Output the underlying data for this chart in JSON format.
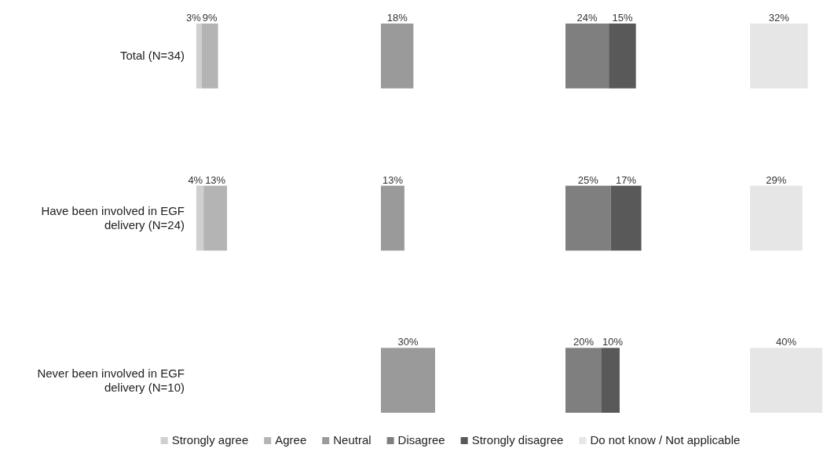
{
  "chart_data": [
    {
      "type": "bar",
      "orientation": "horizontal",
      "stacked": true,
      "categories": [
        "Total (N=34)",
        "Have been involved in EGF delivery (N=24)",
        "Never been involved in EGF delivery (N=10)"
      ],
      "tick_labels": "y",
      "legend": "bottom",
      "series": [
        {
          "name": "Strongly agree",
          "color": "#d0d0d0",
          "values": [
            3,
            4,
            0
          ],
          "value_labels": [
            "3%",
            "4%",
            null
          ]
        },
        {
          "name": "Agree",
          "color": "#b4b4b4",
          "values": [
            9,
            13,
            0
          ],
          "value_labels": [
            "9%",
            "13%",
            null
          ]
        }
      ]
    },
    {
      "type": "bar",
      "orientation": "horizontal",
      "tick_labels": false,
      "legend": "bottom",
      "series": [
        {
          "name": "Neutral",
          "color": "#9a9a9a",
          "values": [
            18,
            13,
            30
          ],
          "value_labels": [
            "18%",
            "13%",
            "30%"
          ]
        }
      ]
    },
    {
      "type": "bar",
      "orientation": "horizontal",
      "stacked": true,
      "tick_labels": false,
      "legend": "bottom",
      "series": [
        {
          "name": "Disagree",
          "color": "#7f7f7f",
          "values": [
            24,
            25,
            20
          ],
          "value_labels": [
            "24%",
            "25%",
            "20%"
          ]
        },
        {
          "name": "Strongly disagree",
          "color": "#595959",
          "values": [
            15,
            17,
            10
          ],
          "value_labels": [
            "15%",
            "17%",
            "10%"
          ]
        }
      ]
    },
    {
      "type": "bar",
      "orientation": "horizontal",
      "tick_labels": false,
      "legend": "bottom",
      "series": [
        {
          "name": "Do not know / Not applicable",
          "color": "#e6e6e6",
          "values": [
            32,
            29,
            40
          ],
          "value_labels": [
            "32%",
            "29%",
            "40%"
          ]
        }
      ]
    }
  ]
}
